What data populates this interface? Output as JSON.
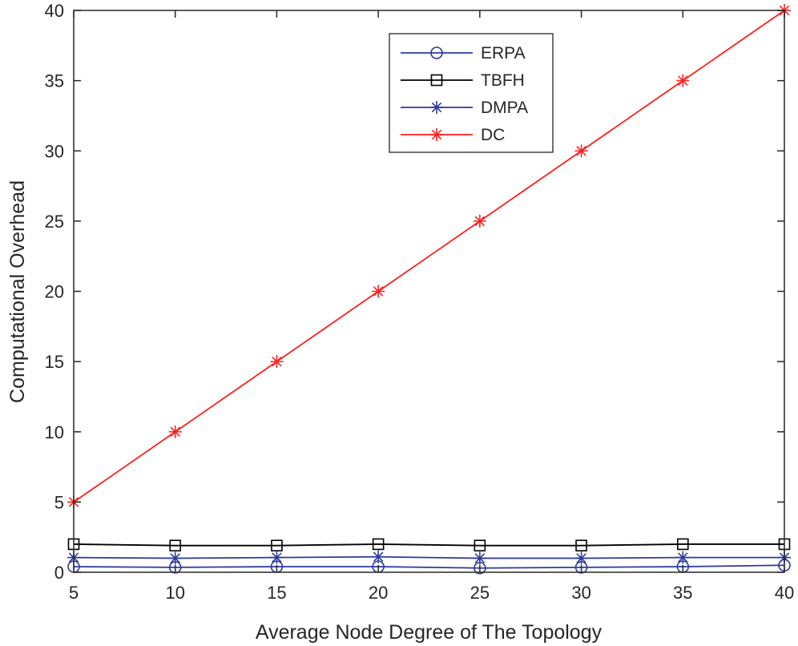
{
  "chart_data": {
    "type": "line",
    "title": "",
    "xlabel": "Average Node Degree of The Topology",
    "ylabel": "Computational Overhead",
    "xlim": [
      5,
      40
    ],
    "ylim": [
      0,
      40
    ],
    "xticks": [
      5,
      10,
      15,
      20,
      25,
      30,
      35,
      40
    ],
    "yticks": [
      0,
      5,
      10,
      15,
      20,
      25,
      30,
      35,
      40
    ],
    "grid": false,
    "legend_position": "top-center",
    "x": [
      5,
      10,
      15,
      20,
      25,
      30,
      35,
      40
    ],
    "series": [
      {
        "name": "ERPA",
        "marker": "circle",
        "color": "#2b3a9e",
        "values": [
          0.4,
          0.35,
          0.4,
          0.4,
          0.3,
          0.35,
          0.4,
          0.5
        ]
      },
      {
        "name": "TBFH",
        "marker": "square",
        "color": "#000000",
        "values": [
          2.0,
          1.9,
          1.9,
          2.0,
          1.9,
          1.9,
          2.0,
          2.0
        ]
      },
      {
        "name": "DMPA",
        "marker": "asterisk",
        "color": "#2b3a9e",
        "values": [
          1.05,
          1.0,
          1.05,
          1.1,
          1.0,
          1.0,
          1.05,
          1.05
        ]
      },
      {
        "name": "DC",
        "marker": "asterisk",
        "color": "#ff1f1f",
        "values": [
          5,
          10,
          15,
          20,
          25,
          30,
          35,
          40
        ]
      }
    ]
  }
}
